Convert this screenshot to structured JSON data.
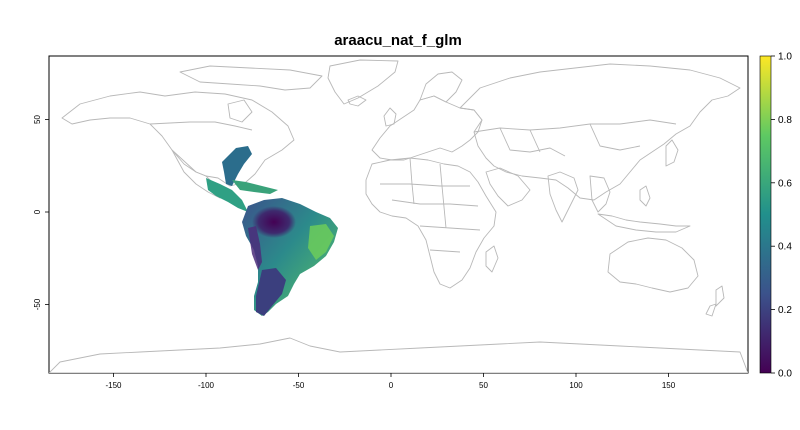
{
  "map": {
    "title": "araacu_nat_f_glm",
    "x_ticks": [
      "-150",
      "-100",
      "-50",
      "0",
      "50",
      "100",
      "150"
    ],
    "y_ticks": [
      "50",
      "0",
      "-50"
    ],
    "colorbar": {
      "ticks": [
        "1.0",
        "0.8",
        "0.6",
        "0.4",
        "0.2",
        "0.0"
      ],
      "colors": [
        "#440154",
        "#3b528b",
        "#21908c",
        "#5ec962",
        "#fde725"
      ]
    },
    "border_color": "#b8b8b8"
  }
}
